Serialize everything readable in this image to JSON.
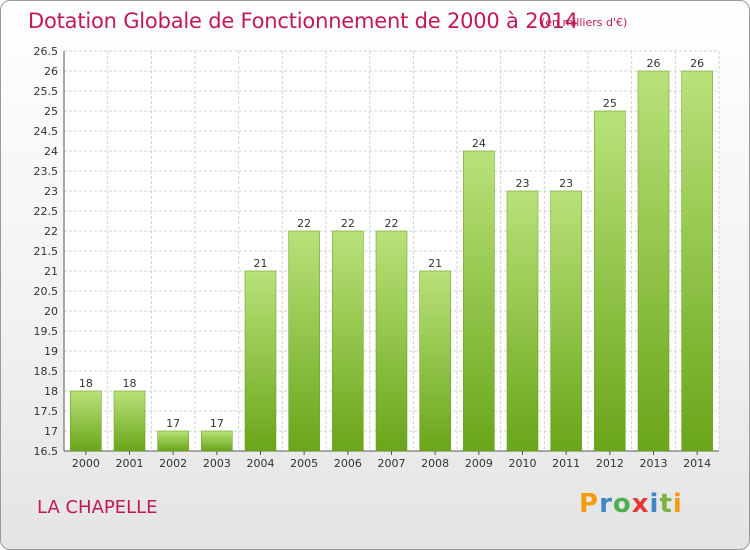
{
  "title": "Dotation Globale de Fonctionnement de 2000 à 2014",
  "subtitle": "(en milliers d'€)",
  "commune": "LA CHAPELLE",
  "logo": {
    "letters": [
      "P",
      "r",
      "o",
      "x",
      "i",
      "t",
      "i"
    ],
    "colors": [
      "#f39c12",
      "#3f88c5",
      "#4caf50",
      "#e53935",
      "#3f88c5",
      "#7cb342",
      "#f39c12"
    ]
  },
  "colors": {
    "title": "#c2185b",
    "bar_light": "#b9e27a",
    "bar_dark": "#6aa51a",
    "grid": "#d0d0d0"
  },
  "chart_data": {
    "type": "bar",
    "categories": [
      "2000",
      "2001",
      "2002",
      "2003",
      "2004",
      "2005",
      "2006",
      "2007",
      "2008",
      "2009",
      "2010",
      "2011",
      "2012",
      "2013",
      "2014"
    ],
    "values": [
      18,
      18,
      17,
      17,
      21,
      22,
      22,
      22,
      21,
      24,
      23,
      23,
      25,
      26,
      26
    ],
    "data_labels": [
      "18",
      "18",
      "17",
      "17",
      "21",
      "22",
      "22",
      "22",
      "21",
      "24",
      "23",
      "23",
      "25",
      "26",
      "26"
    ],
    "ylim": [
      16.5,
      26.5
    ],
    "yticks": [
      "16.5",
      "17",
      "17.5",
      "18",
      "18.5",
      "19",
      "19.5",
      "20",
      "20.5",
      "21",
      "21.5",
      "22",
      "22.5",
      "23",
      "23.5",
      "24",
      "24.5",
      "25",
      "25.5",
      "26",
      "26.5"
    ],
    "grid": true,
    "legend": "none"
  }
}
